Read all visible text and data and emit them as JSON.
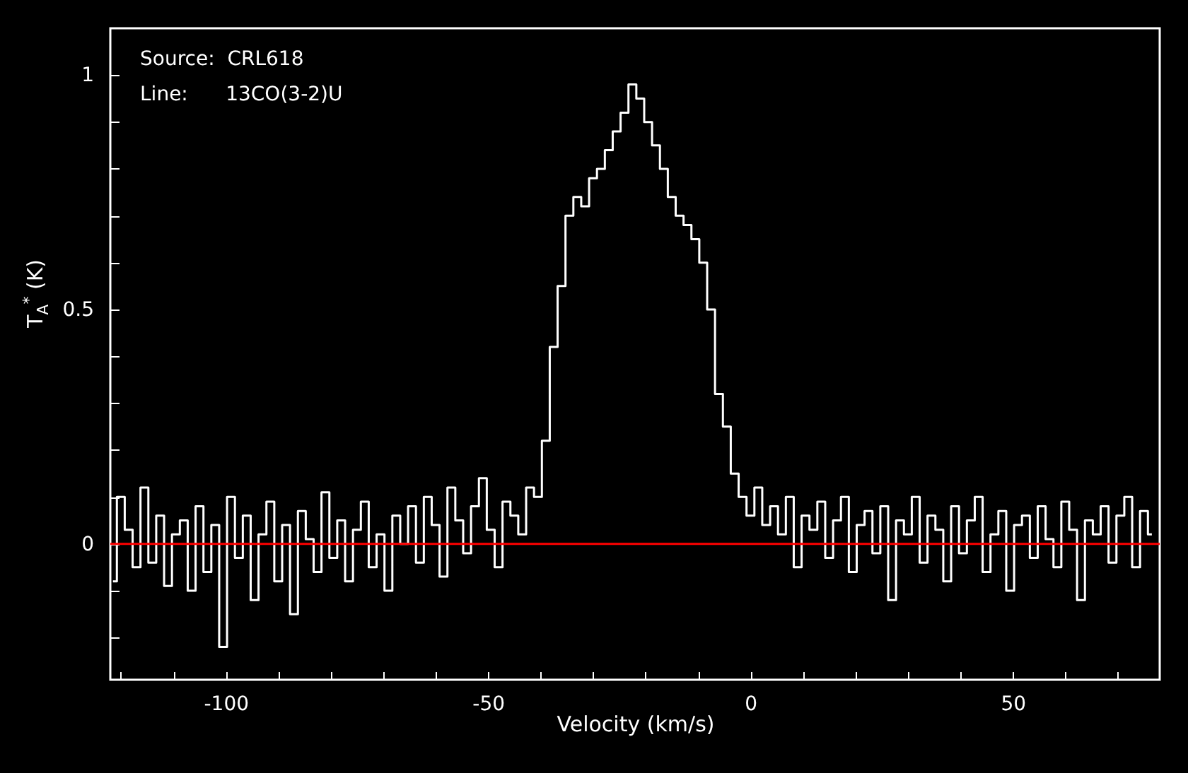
{
  "chart_data": {
    "type": "step",
    "xlabel": "Velocity (km/s)",
    "ylabel": "T$_{A}$$^{*}$ (K)",
    "annotations": [
      "Source:  CRL618",
      "Line:      13CO(3-2)U"
    ],
    "xlim": [
      -122,
      78
    ],
    "ylim": [
      -0.29,
      1.1
    ],
    "xticks": [
      {
        "value": -120,
        "label": null
      },
      {
        "value": -110,
        "label": null
      },
      -100,
      {
        "value": -90,
        "label": null
      },
      {
        "value": -80,
        "label": null
      },
      {
        "value": -70,
        "label": null
      },
      {
        "value": -60,
        "label": null
      },
      -50,
      {
        "value": -40,
        "label": null
      },
      {
        "value": -30,
        "label": null
      },
      {
        "value": -20,
        "label": null
      },
      {
        "value": -10,
        "label": null
      },
      0,
      {
        "value": 10,
        "label": null
      },
      {
        "value": 20,
        "label": null
      },
      {
        "value": 30,
        "label": null
      },
      {
        "value": 40,
        "label": null
      },
      50,
      {
        "value": 60,
        "label": null
      },
      {
        "value": 70,
        "label": null
      }
    ],
    "yticks": [
      {
        "value": -0.2,
        "label": null
      },
      {
        "value": -0.1,
        "label": null
      },
      0,
      {
        "value": 0.1,
        "label": null
      },
      {
        "value": 0.2,
        "label": null
      },
      {
        "value": 0.3,
        "label": null
      },
      {
        "value": 0.4,
        "label": null
      },
      0.5,
      {
        "value": 0.6,
        "label": null
      },
      {
        "value": 0.7,
        "label": null
      },
      {
        "value": 0.8,
        "label": null
      },
      {
        "value": 0.9,
        "label": null
      },
      1
    ],
    "ref_lines": [
      {
        "axis": "y",
        "value": 0,
        "color": "#ff0000"
      }
    ],
    "x": [
      -121.5,
      -120,
      -118.5,
      -117,
      -115.5,
      -114,
      -112.5,
      -111,
      -109.5,
      -108,
      -106.5,
      -105,
      -103.5,
      -102,
      -100.5,
      -99,
      -97.5,
      -96,
      -94.5,
      -93,
      -91.5,
      -90,
      -88.5,
      -87,
      -85.5,
      -84,
      -82.5,
      -81,
      -79.5,
      -78,
      -76.5,
      -75,
      -73.5,
      -72,
      -70.5,
      -69,
      -67.5,
      -66,
      -64.5,
      -63,
      -61.5,
      -60,
      -58.5,
      -57,
      -55.5,
      -54,
      -52.5,
      -51,
      -49.5,
      -48,
      -46.5,
      -45,
      -43.5,
      -42,
      -40.5,
      -39,
      -37.5,
      -36,
      -34.5,
      -33,
      -31.5,
      -30,
      -28.5,
      -27,
      -25.5,
      -24,
      -22.5,
      -21,
      -19.5,
      -18,
      -16.5,
      -15,
      -13.5,
      -12,
      -10.5,
      -9,
      -7.5,
      -6,
      -4.5,
      -3,
      -1.5,
      0,
      1.5,
      3,
      4.5,
      6,
      7.5,
      9,
      10.5,
      12,
      13.5,
      15,
      16.5,
      18,
      19.5,
      21,
      22.5,
      24,
      25.5,
      27,
      28.5,
      30,
      31.5,
      33,
      34.5,
      36,
      37.5,
      39,
      40.5,
      42,
      43.5,
      45,
      46.5,
      48,
      49.5,
      51,
      52.5,
      54,
      55.5,
      57,
      58.5,
      60,
      61.5,
      63,
      64.5,
      66,
      67.5,
      69,
      70.5,
      72,
      73.5,
      75,
      76.5
    ],
    "series": [
      {
        "color": "#ffffff",
        "values": [
          -0.08,
          0.1,
          0.03,
          -0.05,
          0.12,
          -0.04,
          0.06,
          -0.09,
          0.02,
          0.05,
          -0.1,
          0.08,
          -0.06,
          0.04,
          -0.22,
          0.1,
          -0.03,
          0.06,
          -0.12,
          0.02,
          0.09,
          -0.08,
          0.04,
          -0.15,
          0.07,
          0.01,
          -0.06,
          0.11,
          -0.03,
          0.05,
          -0.08,
          0.03,
          0.09,
          -0.05,
          0.02,
          -0.1,
          0.06,
          0.0,
          0.08,
          -0.04,
          0.1,
          0.04,
          -0.07,
          0.12,
          0.05,
          -0.02,
          0.08,
          0.14,
          0.03,
          -0.05,
          0.09,
          0.06,
          0.02,
          0.12,
          0.1,
          0.22,
          0.42,
          0.55,
          0.7,
          0.74,
          0.72,
          0.78,
          0.8,
          0.84,
          0.88,
          0.92,
          0.98,
          0.95,
          0.9,
          0.85,
          0.8,
          0.74,
          0.7,
          0.68,
          0.65,
          0.6,
          0.5,
          0.32,
          0.25,
          0.15,
          0.1,
          0.06,
          0.12,
          0.04,
          0.08,
          0.02,
          0.1,
          -0.05,
          0.06,
          0.03,
          0.09,
          -0.03,
          0.05,
          0.1,
          -0.06,
          0.04,
          0.07,
          -0.02,
          0.08,
          -0.12,
          0.05,
          0.02,
          0.1,
          -0.04,
          0.06,
          0.03,
          -0.08,
          0.08,
          -0.02,
          0.05,
          0.1,
          -0.06,
          0.02,
          0.07,
          -0.1,
          0.04,
          0.06,
          -0.03,
          0.08,
          0.01,
          -0.05,
          0.09,
          0.03,
          -0.12,
          0.05,
          0.02,
          0.08,
          -0.04,
          0.06,
          0.1,
          -0.05,
          0.07,
          0.02
        ]
      }
    ]
  }
}
